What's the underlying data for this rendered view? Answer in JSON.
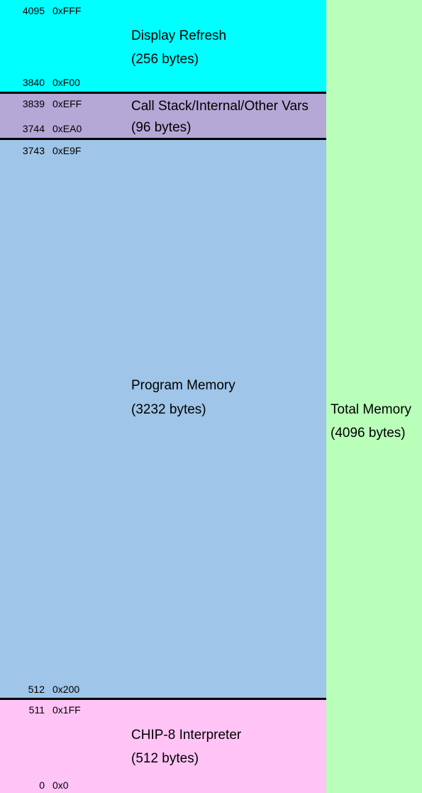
{
  "colors": {
    "display": "#00ffff",
    "stack": "#b5a7d6",
    "program": "#9fc5e8",
    "interpreter": "#ffc4f5",
    "total": "#b9ffb9",
    "divider": "#000000"
  },
  "regions": {
    "display": {
      "name": "Display Refresh",
      "size": "(256 bytes)",
      "top_dec": "4095",
      "top_hex": "0xFFF",
      "bottom_dec": "3840",
      "bottom_hex": "0xF00"
    },
    "stack": {
      "name": "Call Stack/Internal/Other Vars",
      "size": "(96 bytes)",
      "top_dec": "3839",
      "top_hex": "0xEFF",
      "bottom_dec": "3744",
      "bottom_hex": "0xEA0"
    },
    "program": {
      "name": "Program Memory",
      "size": "(3232 bytes)",
      "top_dec": "3743",
      "top_hex": "0xE9F",
      "bottom_dec": "512",
      "bottom_hex": "0x200"
    },
    "interpreter": {
      "name": "CHIP-8 Interpreter",
      "size": "(512 bytes)",
      "top_dec": "511",
      "top_hex": "0x1FF",
      "bottom_dec": "0",
      "bottom_hex": "0x0"
    }
  },
  "total": {
    "name": "Total Memory",
    "size": "(4096 bytes)"
  }
}
